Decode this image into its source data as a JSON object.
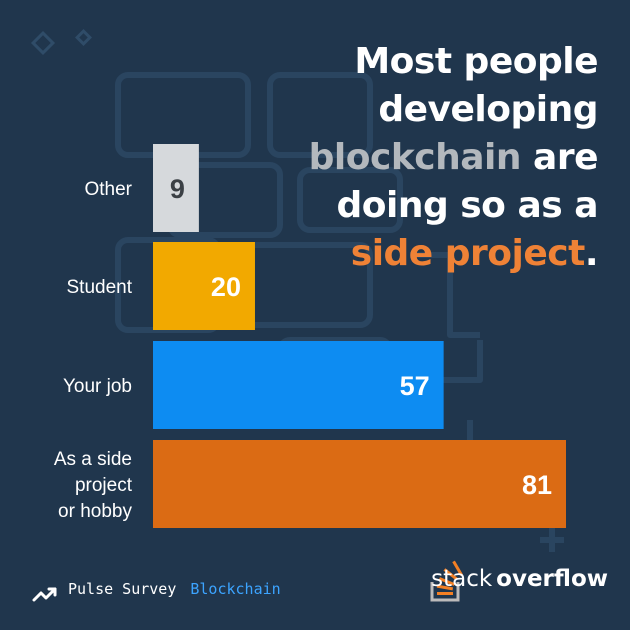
{
  "headline": {
    "line1": "Most people",
    "line2": "developing",
    "line3_highlight": "blockchain",
    "line3_rest": " are",
    "line4": "doing so as a",
    "line5_highlight": "side project",
    "line5_end": "."
  },
  "footer": {
    "pulse_label": "Pulse Survey",
    "topic_label": "Blockchain"
  },
  "logo": {
    "word1": "stack",
    "word2": "overflow"
  },
  "colors": {
    "background": "#20364d",
    "gray_bar": "#d6d9dc",
    "yellow_bar": "#f2a900",
    "blue_bar": "#0d8cf2",
    "orange_bar": "#db6b14",
    "highlight_orange": "#ef8236"
  },
  "chart_data": {
    "type": "bar",
    "orientation": "horizontal",
    "categories": [
      "Other",
      "Student",
      "Your job",
      "As a side project or hobby"
    ],
    "category_lines": [
      [
        "Other"
      ],
      [
        "Student"
      ],
      [
        "Your job"
      ],
      [
        "As a side",
        "project",
        "or hobby"
      ]
    ],
    "values": [
      9,
      20,
      57,
      81
    ],
    "value_labels": [
      "9",
      "20",
      "57",
      "81"
    ],
    "bar_colors": [
      "#d6d9dc",
      "#f2a900",
      "#0d8cf2",
      "#db6b14"
    ],
    "label_colors": [
      "#3b4045",
      "#ffffff",
      "#ffffff",
      "#ffffff"
    ],
    "title": "",
    "xlabel": "",
    "ylabel": "",
    "xlim": [
      0,
      100
    ],
    "grid": false,
    "legend": "none"
  }
}
